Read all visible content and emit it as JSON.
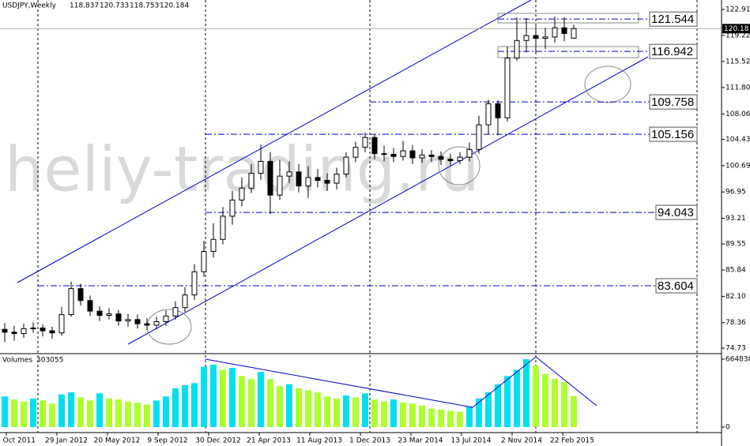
{
  "chart_data": {
    "type": "candlestick",
    "symbol": "USDJPY,Weekly",
    "watermark": "heliy-trading.ru",
    "open": [
      77.4,
      77.0,
      76.8,
      77.5,
      77.6,
      77.2,
      76.9,
      79.5,
      83.2,
      81.5,
      80.0,
      79.4,
      79.6,
      78.6,
      78.8,
      78.2,
      78.0,
      78.5,
      79.3,
      80.5,
      82.3,
      85.6,
      88.5,
      90.2,
      93.5,
      95.8,
      97.5,
      99.6,
      101.3,
      96.5,
      99.2,
      99.8,
      97.8,
      99.0,
      98.6,
      98.2,
      99.5,
      101.9,
      103.3,
      104.7,
      102.4,
      102.3,
      102.0,
      102.8,
      101.8,
      102.2,
      102.0,
      101.6,
      101.4,
      101.9,
      103.0,
      106.5,
      109.5,
      107.5,
      116.0,
      118.5,
      119.2,
      118.8,
      119.0,
      120.3,
      118.837
    ],
    "high": [
      78.3,
      77.9,
      78.2,
      78.4,
      78.1,
      77.8,
      80.6,
      84.2,
      83.9,
      82.2,
      80.7,
      80.4,
      80.2,
      79.6,
      79.5,
      79.0,
      79.2,
      80.1,
      81.4,
      83.4,
      86.7,
      90.0,
      92.5,
      94.8,
      97.1,
      99.0,
      100.9,
      103.7,
      102.6,
      101.5,
      101.3,
      100.9,
      100.6,
      100.2,
      99.6,
      100.4,
      102.6,
      104.1,
      105.4,
      105.1,
      103.5,
      103.2,
      104.2,
      103.6,
      103.0,
      102.9,
      102.7,
      102.4,
      102.6,
      104.0,
      107.8,
      110.1,
      110.0,
      117.6,
      121.8,
      121.7,
      120.5,
      120.3,
      121.9,
      121.8,
      120.733
    ],
    "low": [
      75.6,
      75.8,
      76.2,
      76.9,
      76.4,
      76.1,
      76.5,
      79.2,
      80.8,
      79.3,
      78.6,
      78.8,
      77.9,
      77.8,
      77.5,
      77.3,
      77.4,
      77.9,
      78.8,
      79.9,
      81.6,
      84.9,
      87.6,
      89.5,
      92.3,
      94.9,
      96.8,
      98.7,
      93.8,
      95.8,
      98.2,
      96.9,
      96.1,
      97.6,
      97.1,
      97.3,
      99.0,
      101.2,
      102.6,
      101.6,
      101.3,
      101.2,
      101.4,
      100.9,
      101.1,
      101.2,
      100.8,
      100.7,
      100.9,
      101.3,
      102.4,
      105.2,
      105.0,
      107.0,
      115.6,
      116.8,
      116.5,
      117.3,
      118.2,
      118.4,
      118.753
    ],
    "close": [
      77.0,
      76.8,
      77.5,
      77.6,
      77.2,
      76.9,
      79.5,
      83.2,
      81.5,
      80.0,
      79.4,
      79.6,
      78.6,
      78.8,
      78.2,
      78.0,
      78.5,
      79.3,
      80.5,
      82.3,
      85.6,
      88.5,
      90.2,
      93.5,
      95.8,
      97.5,
      99.6,
      101.3,
      96.5,
      99.2,
      99.8,
      97.8,
      99.0,
      98.6,
      98.2,
      99.5,
      101.9,
      103.3,
      104.7,
      102.4,
      102.3,
      102.0,
      102.8,
      101.8,
      102.2,
      102.0,
      101.6,
      101.4,
      101.9,
      103.0,
      106.5,
      109.5,
      107.5,
      116.0,
      118.5,
      119.2,
      118.8,
      119.0,
      120.3,
      119.5,
      120.184
    ],
    "last_price": {
      "value": 120.184,
      "label": "120.18"
    },
    "ylim": [
      74.06,
      124.26
    ],
    "yticks": [
      122.91,
      119.22,
      115.52,
      {
        "value": 111.8,
        "label": "111.80"
      },
      108.06,
      104.43,
      100.69,
      96.95,
      93.21,
      89.55,
      85.84,
      {
        "value": 82.1,
        "label": "82.10"
      },
      78.36,
      74.73
    ],
    "levels": [
      121.544,
      116.942,
      109.758,
      105.156,
      94.043,
      83.604
    ],
    "level_color": "#0000cd",
    "date_labels": [
      "9 Oct 2011",
      "29 Jan 2012",
      "20 May 2012",
      "9 Sep 2012",
      "30 Dec 2012",
      "21 Apr 2013",
      "11 Aug 2013",
      "1 Dec 2013",
      "23 Mar 2014",
      "13 Jul 2014",
      "2 Nov 2014",
      "22 Feb 2015"
    ],
    "volume_label": "Volumes",
    "volumes": [
      300000,
      270000,
      250000,
      280000,
      260000,
      230000,
      320000,
      340000,
      290000,
      260000,
      330000,
      280000,
      270000,
      250000,
      240000,
      220000,
      260000,
      300000,
      380000,
      410000,
      430000,
      590000,
      610000,
      560000,
      580000,
      500000,
      470000,
      540000,
      470000,
      400000,
      420000,
      380000,
      360000,
      340000,
      300000,
      280000,
      310000,
      290000,
      330000,
      270000,
      250000,
      270000,
      240000,
      230000,
      210000,
      180000,
      170000,
      160000,
      150000,
      200000,
      280000,
      340000,
      420000,
      500000,
      560000,
      664838,
      600000,
      520000,
      470000,
      440000,
      303055
    ],
    "vlim": [
      -54100,
      711200
    ],
    "vticks": [
      664838,
      0
    ],
    "volume_up_color": "#00e0ee",
    "volume_down_color": "#adff2f"
  }
}
